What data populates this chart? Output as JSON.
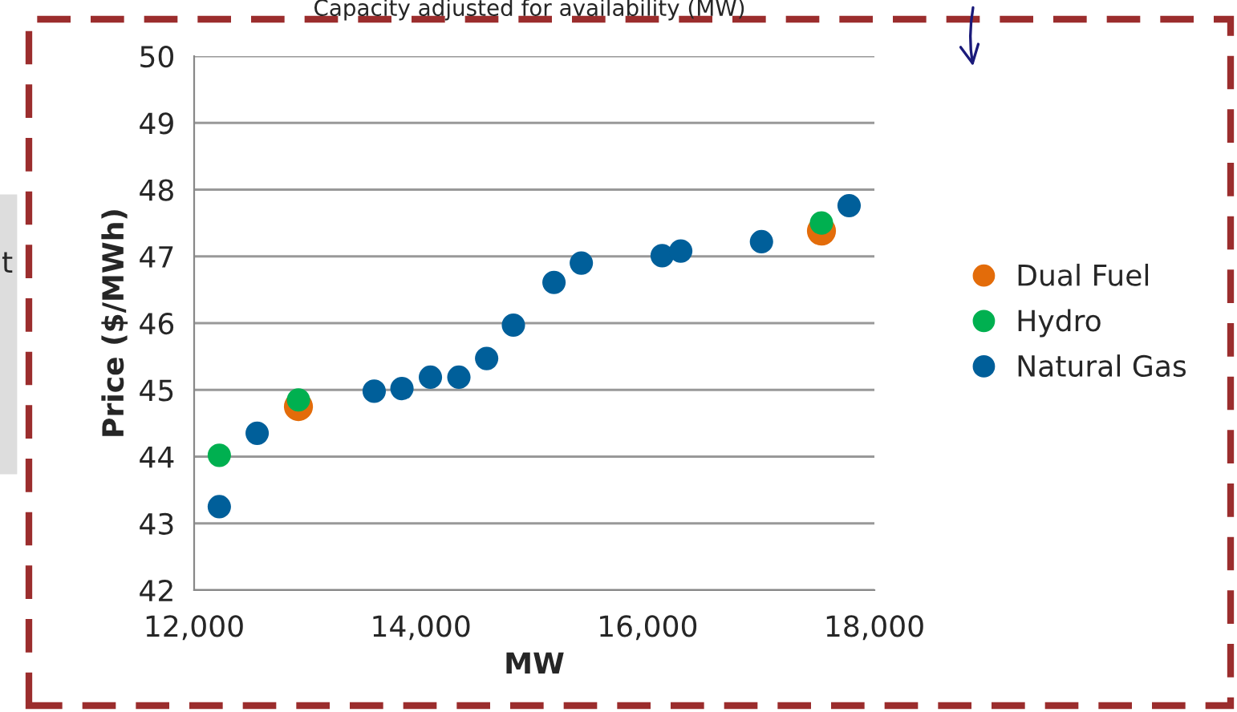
{
  "chart_data": {
    "type": "scatter",
    "xlabel": "MW",
    "ylabel": "Price ($/MWh)",
    "xlim": [
      12000,
      18000
    ],
    "xticks": [
      {
        "value": 12000,
        "label": "12,000"
      },
      {
        "value": 14000,
        "label": "14,000"
      },
      {
        "value": 16000,
        "label": "16,000"
      },
      {
        "value": 18000,
        "label": "18,000"
      }
    ],
    "ylim": [
      42,
      50
    ],
    "yticks": [
      42,
      43,
      44,
      45,
      46,
      47,
      48,
      49,
      50
    ],
    "grid": "y",
    "legend": "right",
    "marker": "circle",
    "annotations": [
      "Capacity adjusted for availability (MW)",
      "t"
    ],
    "series": [
      {
        "name": "Dual Fuel",
        "color": "#e36c0a",
        "x": [
          12920,
          17533
        ],
        "values": [
          44.75,
          47.38
        ]
      },
      {
        "name": "Hydro",
        "color": "#00b050",
        "x": [
          12222,
          12920,
          17533
        ],
        "values": [
          44.02,
          44.85,
          47.5
        ]
      },
      {
        "name": "Natural Gas",
        "color": "#005f9a",
        "x": [
          12222,
          12556,
          13588,
          13833,
          14084,
          14335,
          14580,
          14816,
          15174,
          15415,
          16128,
          16292,
          17004,
          17777
        ],
        "values": [
          43.25,
          44.35,
          44.98,
          45.02,
          45.19,
          45.19,
          45.47,
          45.97,
          46.61,
          46.9,
          47.01,
          47.08,
          47.22,
          47.76
        ]
      }
    ]
  }
}
